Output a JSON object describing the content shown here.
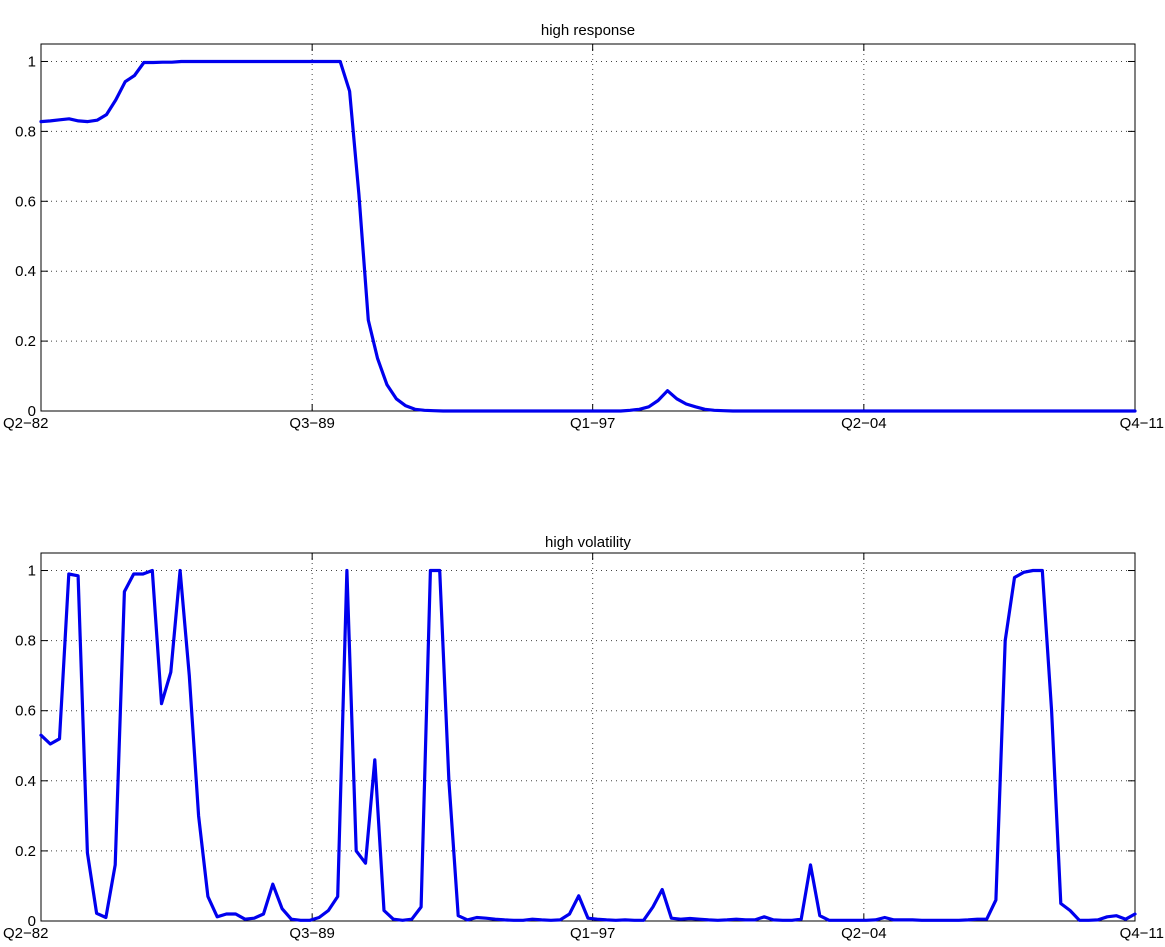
{
  "chart_data": [
    {
      "type": "line",
      "title": "high response",
      "xlabel": "",
      "ylabel": "",
      "xlim": [
        0,
        117
      ],
      "ylim": [
        0,
        1.05
      ],
      "grid": true,
      "x_tick_positions": [
        0,
        29,
        59,
        88,
        117
      ],
      "x_tick_labels": [
        "Q2−82",
        "Q3−89",
        "Q1−97",
        "Q2−04",
        "Q4−11"
      ],
      "y_ticks": [
        0,
        0.2,
        0.4,
        0.6,
        0.8,
        1
      ],
      "y_tick_labels": [
        "0",
        "0.2",
        "0.4",
        "0.6",
        "0.8",
        "1"
      ],
      "series": [
        {
          "color": "#0000ee",
          "values": [
            0.828,
            0.83,
            0.833,
            0.836,
            0.83,
            0.828,
            0.832,
            0.848,
            0.89,
            0.942,
            0.96,
            0.997,
            0.997,
            0.998,
            0.998,
            1.0,
            1.0,
            1.0,
            1.0,
            1.0,
            1.0,
            1.0,
            1.0,
            1.0,
            1.0,
            1.0,
            1.0,
            1.0,
            1.0,
            1.0,
            1.0,
            1.0,
            1.0,
            0.915,
            0.62,
            0.26,
            0.15,
            0.075,
            0.035,
            0.015,
            0.005,
            0.002,
            0.001,
            0.0,
            0.0,
            0.0,
            0.0,
            0.0,
            0.0,
            0.0,
            0.0,
            0.0,
            0.0,
            0.0,
            0.0,
            0.0,
            0.0,
            0.0,
            0.0,
            0.0,
            0.0,
            0.0,
            0.0,
            0.002,
            0.005,
            0.012,
            0.03,
            0.058,
            0.035,
            0.02,
            0.012,
            0.005,
            0.002,
            0.001,
            0.0,
            0.0,
            0.0,
            0.0,
            0.0,
            0.0,
            0.0,
            0.0,
            0.0,
            0.0,
            0.0,
            0.0,
            0.0,
            0.0,
            0.0,
            0.0,
            0.0,
            0.0,
            0.0,
            0.0,
            0.0,
            0.0,
            0.0,
            0.0,
            0.0,
            0.0,
            0.0,
            0.0,
            0.0,
            0.0,
            0.0,
            0.0,
            0.0,
            0.0,
            0.0,
            0.0,
            0.0,
            0.0,
            0.0,
            0.0,
            0.0,
            0.0,
            0.0,
            0.0
          ]
        }
      ]
    },
    {
      "type": "line",
      "title": "high volatility",
      "xlabel": "",
      "ylabel": "",
      "xlim": [
        0,
        117
      ],
      "ylim": [
        0,
        1.05
      ],
      "grid": true,
      "x_tick_positions": [
        0,
        29,
        59,
        88,
        117
      ],
      "x_tick_labels": [
        "Q2−82",
        "Q3−89",
        "Q1−97",
        "Q2−04",
        "Q4−11"
      ],
      "y_ticks": [
        0,
        0.2,
        0.4,
        0.6,
        0.8,
        1
      ],
      "y_tick_labels": [
        "0",
        "0.2",
        "0.4",
        "0.6",
        "0.8",
        "1"
      ],
      "series": [
        {
          "color": "#0000ee",
          "values": [
            0.53,
            0.505,
            0.52,
            0.99,
            0.985,
            0.195,
            0.022,
            0.01,
            0.16,
            0.94,
            0.99,
            0.99,
            1.0,
            0.62,
            0.71,
            1.0,
            0.7,
            0.3,
            0.07,
            0.012,
            0.02,
            0.02,
            0.005,
            0.008,
            0.02,
            0.105,
            0.035,
            0.005,
            0.002,
            0.002,
            0.01,
            0.03,
            0.07,
            1.0,
            0.2,
            0.165,
            0.46,
            0.03,
            0.005,
            0.002,
            0.005,
            0.04,
            1.0,
            1.0,
            0.4,
            0.015,
            0.003,
            0.01,
            0.008,
            0.005,
            0.003,
            0.002,
            0.002,
            0.005,
            0.003,
            0.002,
            0.003,
            0.02,
            0.072,
            0.008,
            0.005,
            0.003,
            0.002,
            0.003,
            0.002,
            0.002,
            0.04,
            0.09,
            0.008,
            0.005,
            0.007,
            0.005,
            0.003,
            0.002,
            0.003,
            0.005,
            0.003,
            0.003,
            0.012,
            0.003,
            0.002,
            0.002,
            0.005,
            0.16,
            0.015,
            0.002,
            0.002,
            0.002,
            0.002,
            0.002,
            0.003,
            0.01,
            0.003,
            0.003,
            0.003,
            0.002,
            0.002,
            0.002,
            0.002,
            0.002,
            0.003,
            0.005,
            0.005,
            0.06,
            0.8,
            0.98,
            0.995,
            1.0,
            1.0,
            0.6,
            0.05,
            0.03,
            0.002,
            0.002,
            0.003,
            0.012,
            0.015,
            0.005,
            0.02
          ]
        }
      ]
    }
  ]
}
